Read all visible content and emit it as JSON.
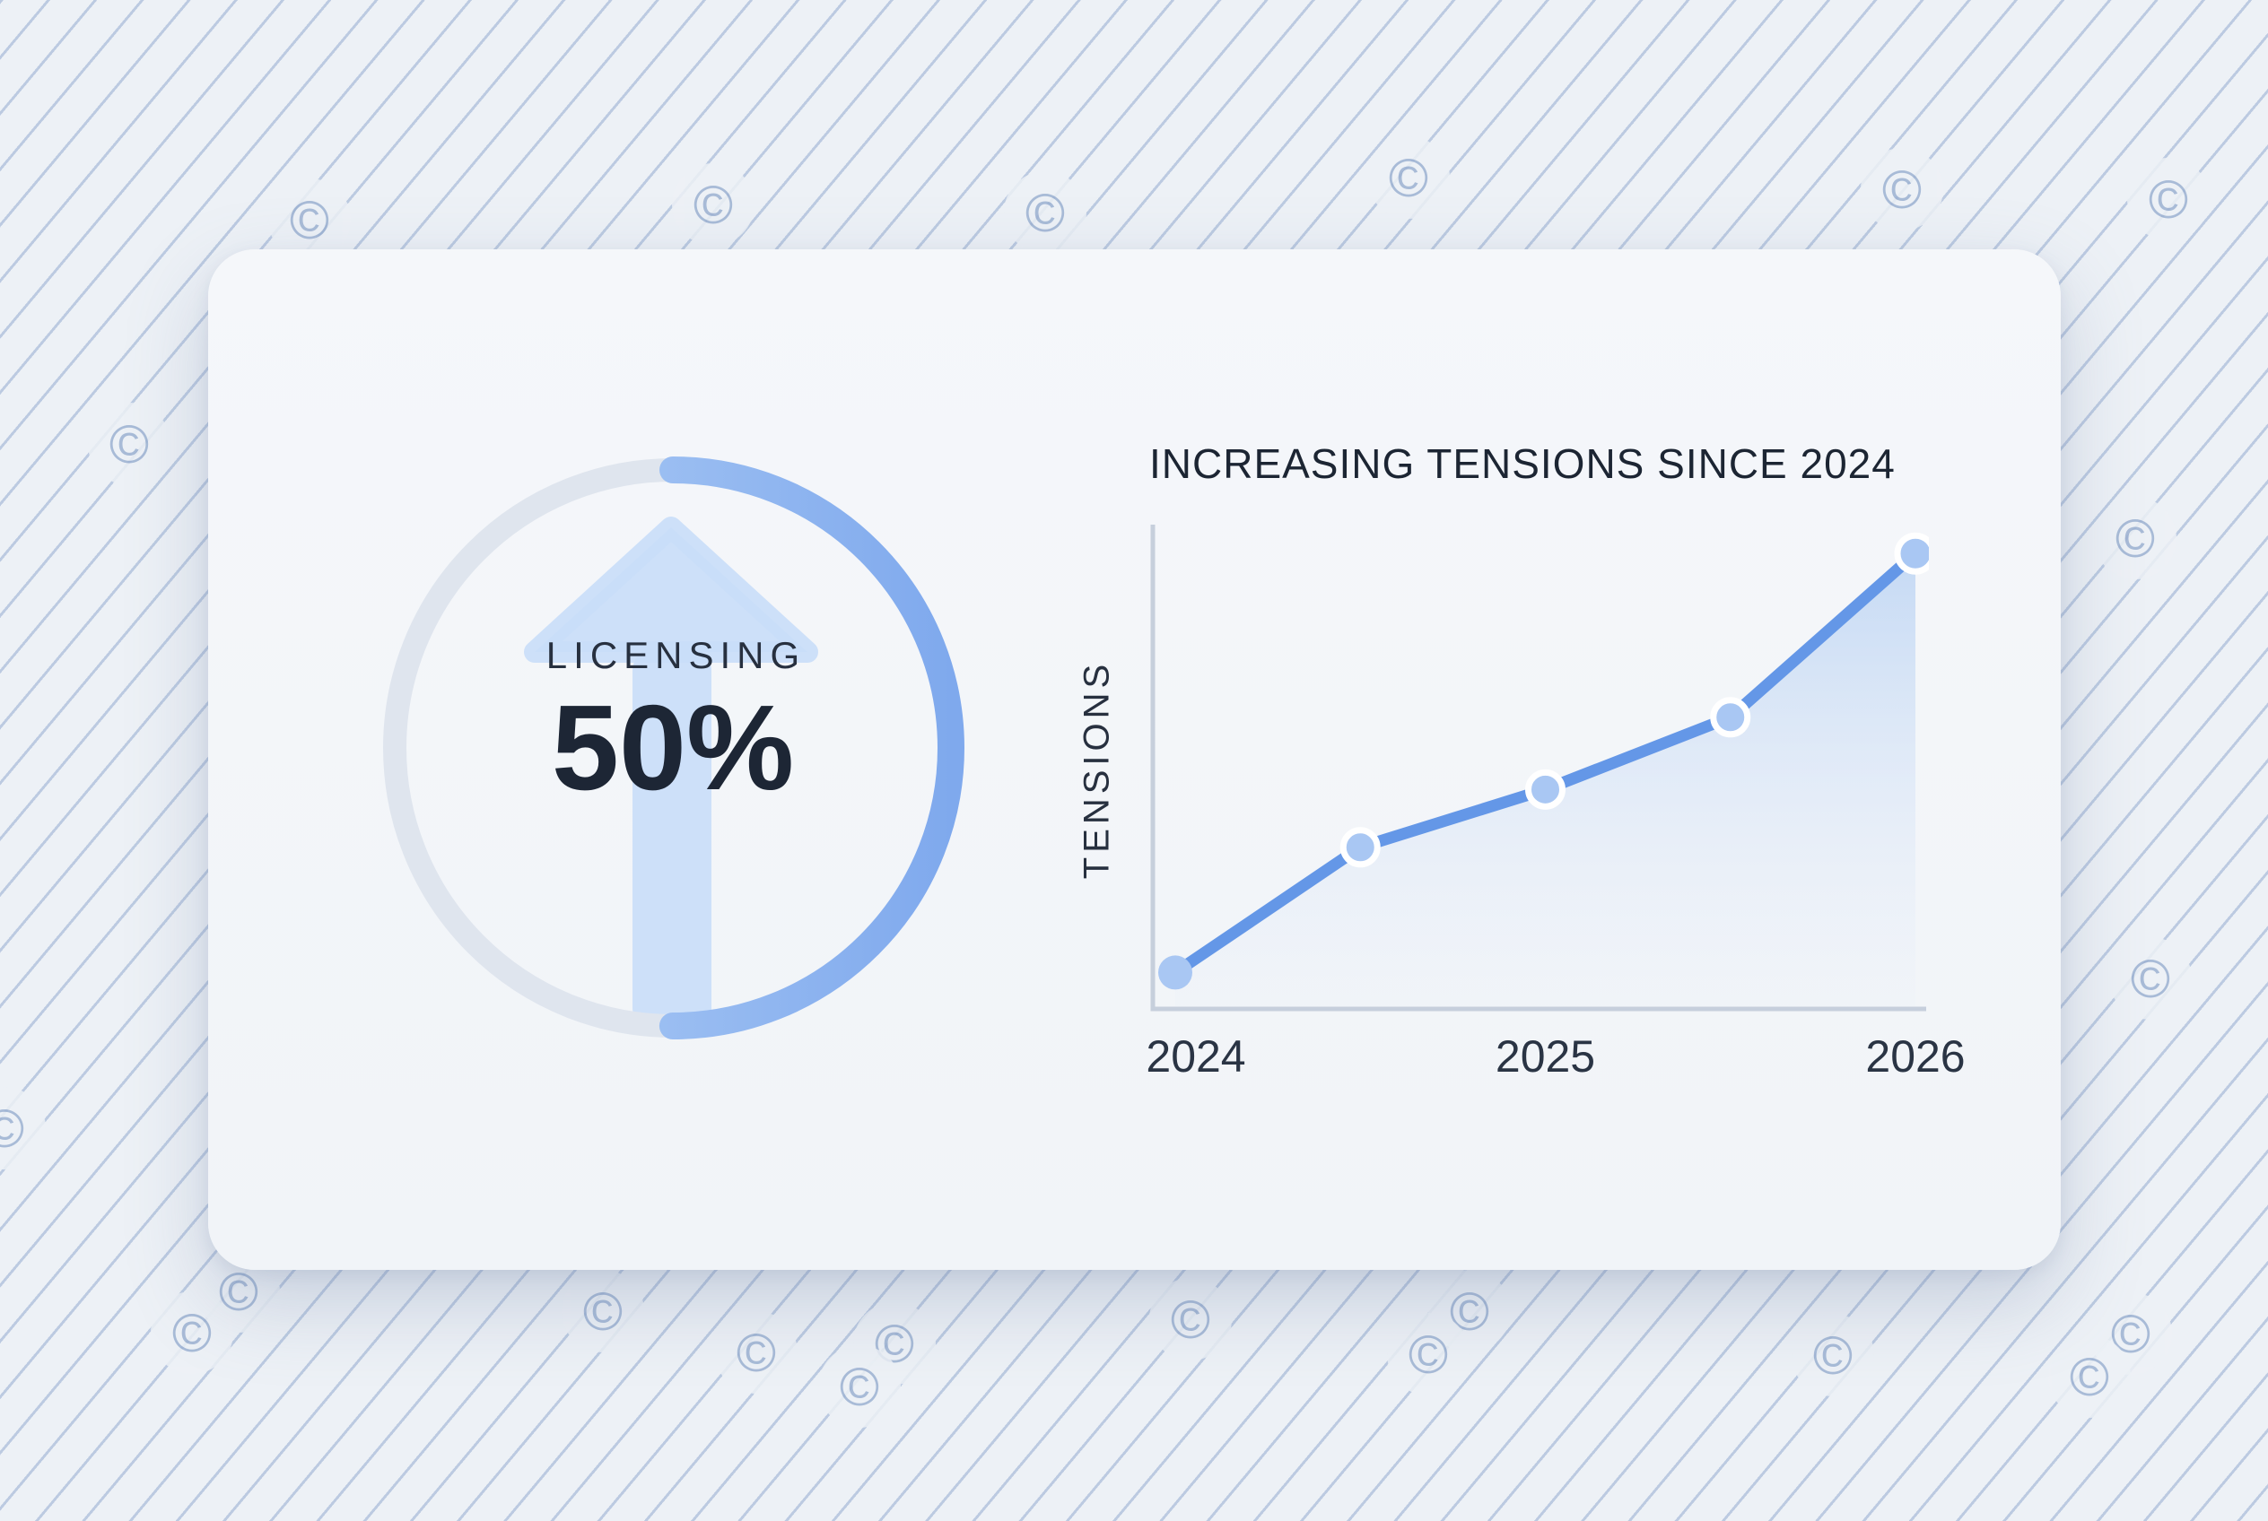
{
  "watermark": {
    "symbol": "©"
  },
  "theme": {
    "background": "#edf1f6",
    "pattern_line": "#94abd0",
    "card_bg": "#f3f5f9",
    "text_dark": "#1d2635",
    "ring_track": "#dfe5ee",
    "ring_blue_top": "#b4d1f6",
    "ring_blue_bottom": "#7fa9ed",
    "arrow_blue": "#c9def8",
    "axis_gray": "#c6cfdc",
    "line_blue": "#6497e7",
    "point_fill": "#a9c7f3",
    "point_ring": "#ffffff",
    "area_top": "#b9d2f3",
    "area_bottom": "#e7eef9"
  },
  "chart_data": [
    {
      "type": "donut-gauge",
      "label": "LICENSING",
      "value_label": "50%",
      "percent": 50,
      "direction": "up"
    },
    {
      "type": "area",
      "title": "INCREASING TENSIONS SINCE 2024",
      "x": [
        2024,
        2024.5,
        2025,
        2025.5,
        2026
      ],
      "series": [
        {
          "name": "Tensions",
          "values": [
            7,
            33,
            45,
            60,
            94
          ]
        }
      ],
      "xticks": [
        "2024",
        "2025",
        "2026"
      ],
      "xtick_years": [
        2024,
        2025,
        2026
      ],
      "xlabel": "",
      "ylabel": "TENSIONS",
      "ylim": [
        0,
        100
      ],
      "grid": false,
      "legend": "none"
    }
  ]
}
